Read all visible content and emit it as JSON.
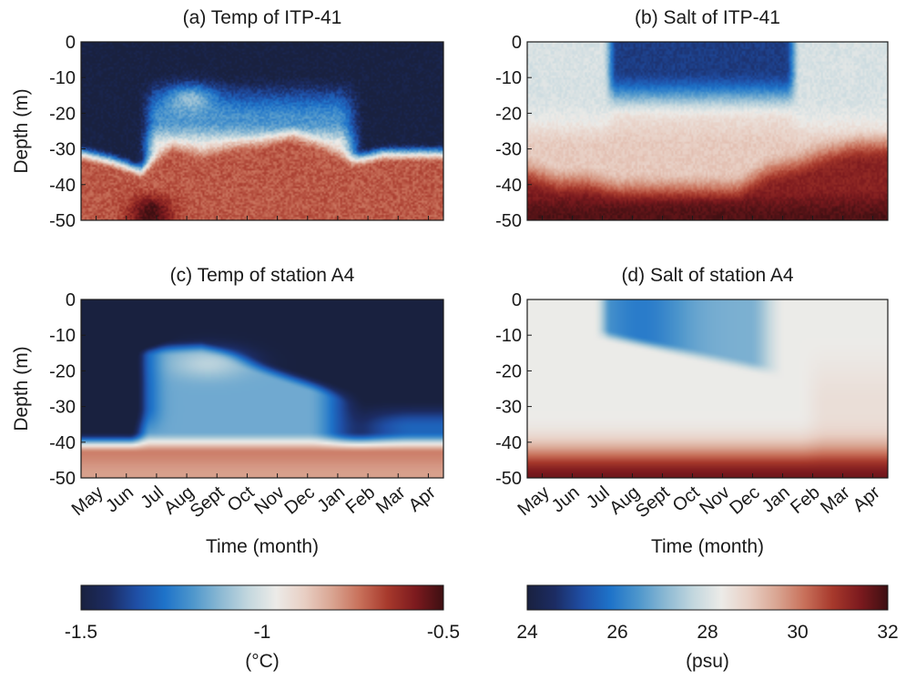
{
  "chart_data": [
    {
      "type": "heatmap",
      "title": "(a) Temp of ITP-41",
      "variable": "temperature",
      "ylabel": "Depth (m)",
      "xlabel": "",
      "yticks": [
        0,
        -10,
        -20,
        -30,
        -40,
        -50
      ],
      "ylim": [
        -50,
        0
      ],
      "x_categories": [
        "May",
        "Jun",
        "Jul",
        "Aug",
        "Sept",
        "Oct",
        "Nov",
        "Dec",
        "Jan",
        "Feb",
        "Mar",
        "Apr"
      ],
      "show_x_ticklabels": false,
      "field": {
        "upper_layer_value": -1.5,
        "summer_warm_layer": {
          "value": -1.05,
          "depth_range": [
            -20,
            -12
          ],
          "months": [
            "Aug",
            "Sept"
          ]
        },
        "mixed_layer_base_depth": [
          -30,
          -32,
          -35,
          -28,
          -30,
          -28,
          -27,
          -25,
          -28,
          -32,
          -30,
          -30
        ],
        "deep_value": -0.7
      }
    },
    {
      "type": "heatmap",
      "title": "(b) Salt of ITP-41",
      "variable": "salinity",
      "ylabel": "",
      "xlabel": "",
      "yticks": [
        0,
        -10,
        -20,
        -30,
        -40,
        -50
      ],
      "ylim": [
        -50,
        0
      ],
      "x_categories": [
        "May",
        "Jun",
        "Jul",
        "Aug",
        "Sept",
        "Oct",
        "Nov",
        "Dec",
        "Jan",
        "Feb",
        "Mar",
        "Apr"
      ],
      "show_x_ticklabels": false,
      "field": {
        "surface_fresh_value": 25.5,
        "fresh_months": [
          "Aug",
          "Sept",
          "Oct",
          "Nov",
          "Dec",
          "Jan"
        ],
        "mid_value": 29.0,
        "halocline_depth": [
          -35,
          -38,
          -38,
          -40,
          -40,
          -40,
          -40,
          -40,
          -35,
          -33,
          -30,
          -28
        ],
        "deep_value": 31.5
      }
    },
    {
      "type": "heatmap",
      "title": "(c) Temp of station A4",
      "variable": "temperature",
      "ylabel": "Depth (m)",
      "xlabel": "Time (month)",
      "yticks": [
        0,
        -10,
        -20,
        -30,
        -40,
        -50
      ],
      "ylim": [
        -50,
        0
      ],
      "x_categories": [
        "May",
        "Jun",
        "Jul",
        "Aug",
        "Sept",
        "Oct",
        "Nov",
        "Dec",
        "Jan",
        "Feb",
        "Mar",
        "Apr"
      ],
      "show_x_ticklabels": true,
      "field": {
        "upper_layer_value": -1.5,
        "warm_core": {
          "value": -1.05,
          "depth": -18,
          "month": "Sept"
        },
        "cold_layer_base_depth": -38,
        "deep_value": -0.75
      }
    },
    {
      "type": "heatmap",
      "title": "(d) Salt of station A4",
      "variable": "salinity",
      "ylabel": "",
      "xlabel": "Time (month)",
      "yticks": [
        0,
        -10,
        -20,
        -30,
        -40,
        -50
      ],
      "ylim": [
        -50,
        0
      ],
      "x_categories": [
        "May",
        "Jun",
        "Jul",
        "Aug",
        "Sept",
        "Oct",
        "Nov",
        "Dec",
        "Jan",
        "Feb",
        "Mar",
        "Apr"
      ],
      "show_x_ticklabels": true,
      "field": {
        "background_value": 28.3,
        "fresh_lens": {
          "value": 26.0,
          "depth_range": [
            -20,
            0
          ],
          "months": [
            "Jul",
            "Aug",
            "Sept",
            "Oct",
            "Nov",
            "Dec",
            "Jan"
          ]
        },
        "deep_value": 31.0
      }
    }
  ],
  "colorbars": [
    {
      "label": "(°C)",
      "min": -1.5,
      "max": -0.5,
      "ticks": [
        "-1.5",
        "-1",
        "-0.5"
      ]
    },
    {
      "label": "(psu)",
      "min": 24,
      "max": 32,
      "ticks": [
        "24",
        "26",
        "28",
        "30",
        "32"
      ]
    }
  ],
  "colormap": [
    "#19213f",
    "#1c2c63",
    "#1f4fa6",
    "#1e73c9",
    "#4d96cc",
    "#8cb9d3",
    "#c3d7de",
    "#ecebe8",
    "#e8cfc4",
    "#d9a592",
    "#c8705a",
    "#a7392c",
    "#7c1a1e",
    "#3d0f12"
  ]
}
